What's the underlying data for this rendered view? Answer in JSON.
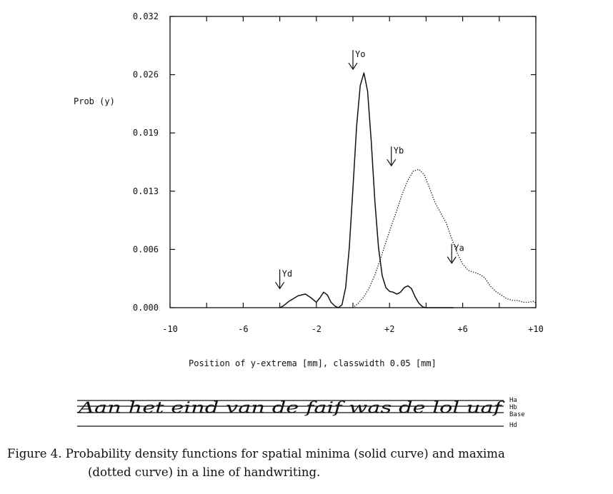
{
  "chart_data": {
    "type": "line",
    "xlabel": "Position of y-extrema [mm], classwidth 0.05 [mm]",
    "ylabel": "Prob (y)",
    "xlim": [
      -10,
      10
    ],
    "ylim": [
      0,
      0.032
    ],
    "x_ticks": [
      -10,
      -8,
      -6,
      -4,
      -2,
      0,
      2,
      4,
      6,
      8,
      10
    ],
    "x_tick_labels": [
      "-10",
      "-6",
      "-2",
      "+2",
      "+6",
      "+10"
    ],
    "x_tick_label_values": [
      -10,
      -6,
      -2,
      2,
      6,
      10
    ],
    "y_ticks": [
      0.0,
      0.0064,
      0.0128,
      0.0192,
      0.0256,
      0.032
    ],
    "y_tick_labels": [
      "0.000",
      "0.006",
      "0.013",
      "0.019",
      "0.026",
      "0.032"
    ],
    "series": [
      {
        "style": "solid",
        "x": [
          -4.0,
          -3.8,
          -3.5,
          -3.0,
          -2.6,
          -2.3,
          -2.0,
          -1.8,
          -1.6,
          -1.4,
          -1.2,
          -1.0,
          -0.8,
          -0.6,
          -0.4,
          -0.2,
          0.0,
          0.2,
          0.4,
          0.6,
          0.8,
          1.0,
          1.2,
          1.4,
          1.6,
          1.8,
          2.0,
          2.2,
          2.4,
          2.6,
          2.8,
          3.0,
          3.2,
          3.4,
          3.6,
          3.8,
          4.0,
          4.2,
          4.5,
          4.8,
          5.5
        ],
        "y": [
          0.0,
          0.0002,
          0.0007,
          0.0013,
          0.0015,
          0.0011,
          0.0006,
          0.0011,
          0.0017,
          0.0014,
          0.0006,
          0.0002,
          0.0,
          0.0003,
          0.0022,
          0.0066,
          0.0131,
          0.0199,
          0.0244,
          0.0258,
          0.0238,
          0.0183,
          0.0117,
          0.0066,
          0.0035,
          0.0022,
          0.0018,
          0.0017,
          0.0015,
          0.0017,
          0.0022,
          0.0024,
          0.0021,
          0.0012,
          0.0005,
          0.0001,
          0.0,
          0.0,
          0.0,
          0.0,
          0.0
        ]
      },
      {
        "style": "dotted",
        "x": [
          0.0,
          0.3,
          0.6,
          0.9,
          1.2,
          1.5,
          1.8,
          2.1,
          2.4,
          2.7,
          3.0,
          3.3,
          3.6,
          3.9,
          4.2,
          4.5,
          4.8,
          5.1,
          5.4,
          5.7,
          6.0,
          6.3,
          6.6,
          6.9,
          7.2,
          7.5,
          7.8,
          8.1,
          8.4,
          8.7,
          9.0,
          9.3,
          9.6,
          9.9,
          10.2
        ],
        "y": [
          0.0,
          0.0005,
          0.0012,
          0.0022,
          0.0036,
          0.0053,
          0.0072,
          0.009,
          0.0107,
          0.0125,
          0.014,
          0.015,
          0.0152,
          0.0146,
          0.0131,
          0.0115,
          0.0104,
          0.0093,
          0.0076,
          0.006,
          0.0048,
          0.0041,
          0.0039,
          0.0037,
          0.0033,
          0.0024,
          0.0018,
          0.0014,
          0.001,
          0.0008,
          0.0008,
          0.0006,
          0.0006,
          0.0007,
          0.0005
        ]
      }
    ],
    "annotations": [
      {
        "label": "Yd",
        "x": -4.0,
        "y": 0.0017
      },
      {
        "label": "Yo",
        "x": 0.0,
        "y": 0.0258
      },
      {
        "label": "Yb",
        "x": 2.1,
        "y": 0.0152
      },
      {
        "label": "Ya",
        "x": 5.4,
        "y": 0.0045
      }
    ]
  },
  "handwriting": {
    "text": "Aan het eind van de faif was de lol uaf",
    "line_labels": [
      "Ha",
      "Hb",
      "Base",
      "Hd"
    ]
  },
  "caption": {
    "line1": "Figure 4. Probability density functions for spatial minima (solid curve) and maxima",
    "line2": "(dotted curve) in a line of handwriting."
  }
}
